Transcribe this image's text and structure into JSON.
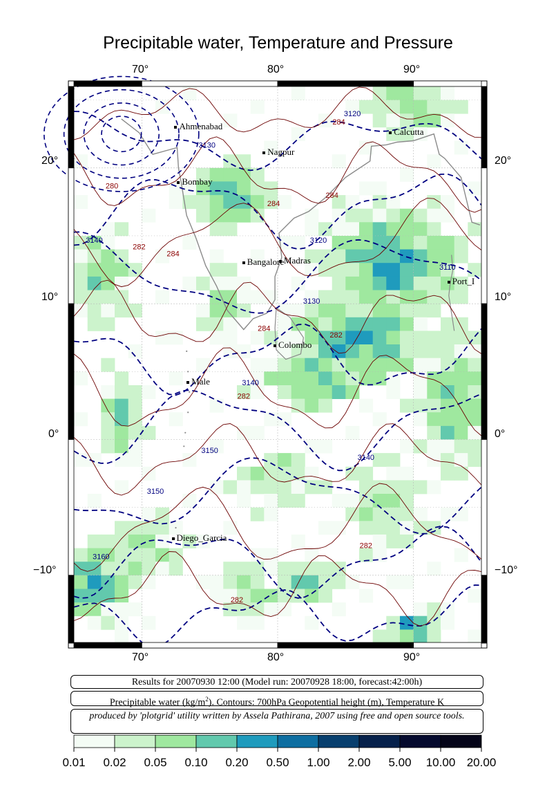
{
  "title": "Precipitable water, Temperature and Pressure",
  "axes": {
    "lon_ticks": [
      "70°",
      "80°",
      "90°"
    ],
    "lat_ticks": [
      "20°",
      "10°",
      "0°",
      "−10°"
    ]
  },
  "cities": [
    {
      "name": "Ahmenabad",
      "lon": 72.6,
      "lat": 23.0
    },
    {
      "name": "Calcutta",
      "lon": 88.4,
      "lat": 22.6
    },
    {
      "name": "Nagpur",
      "lon": 79.1,
      "lat": 21.1
    },
    {
      "name": "Bombay",
      "lon": 72.8,
      "lat": 18.9
    },
    {
      "name": "Bangalore",
      "lon": 77.6,
      "lat": 13.0
    },
    {
      "name": "Madras",
      "lon": 80.3,
      "lat": 13.1
    },
    {
      "name": "Port_I",
      "lon": 92.7,
      "lat": 11.6
    },
    {
      "name": "Colombo",
      "lon": 79.9,
      "lat": 6.9
    },
    {
      "name": "Male",
      "lon": 73.5,
      "lat": 4.2
    },
    {
      "name": "Diego_Garcia",
      "lon": 72.4,
      "lat": -7.3
    }
  ],
  "contour_labels": [
    {
      "text": "3120",
      "lon": 85.5,
      "lat": 23.8,
      "color": "#000080"
    },
    {
      "text": "284",
      "lon": 84.5,
      "lat": 23.2,
      "color": "#8b0000"
    },
    {
      "text": "3130",
      "lon": 74.8,
      "lat": 21.5,
      "color": "#000080"
    },
    {
      "text": "280",
      "lon": 67.8,
      "lat": 18.5,
      "color": "#8b0000"
    },
    {
      "text": "284",
      "lon": 84.0,
      "lat": 17.8,
      "color": "#8b0000"
    },
    {
      "text": "284",
      "lon": 79.7,
      "lat": 17.2,
      "color": "#8b0000"
    },
    {
      "text": "3140",
      "lon": 66.5,
      "lat": 14.5,
      "color": "#000080"
    },
    {
      "text": "282",
      "lon": 69.8,
      "lat": 14.0,
      "color": "#8b0000"
    },
    {
      "text": "3120",
      "lon": 83.0,
      "lat": 14.5,
      "color": "#000080"
    },
    {
      "text": "284",
      "lon": 72.3,
      "lat": 13.5,
      "color": "#8b0000"
    },
    {
      "text": "3110",
      "lon": 92.5,
      "lat": 12.5,
      "color": "#000080"
    },
    {
      "text": "3130",
      "lon": 82.5,
      "lat": 10.0,
      "color": "#000080"
    },
    {
      "text": "282",
      "lon": 84.3,
      "lat": 7.5,
      "color": "#8b0000"
    },
    {
      "text": "284",
      "lon": 79.0,
      "lat": 8.0,
      "color": "#8b0000"
    },
    {
      "text": "3140",
      "lon": 78.0,
      "lat": 4.0,
      "color": "#000080"
    },
    {
      "text": "282",
      "lon": 77.5,
      "lat": 3.0,
      "color": "#8b0000"
    },
    {
      "text": "3150",
      "lon": 75.0,
      "lat": -1.0,
      "color": "#000080"
    },
    {
      "text": "3140",
      "lon": 86.5,
      "lat": -1.5,
      "color": "#000080"
    },
    {
      "text": "3150",
      "lon": 71.0,
      "lat": -4.0,
      "color": "#000080"
    },
    {
      "text": "282",
      "lon": 86.5,
      "lat": -8.0,
      "color": "#8b0000"
    },
    {
      "text": "3160",
      "lon": 67.0,
      "lat": -8.8,
      "color": "#000080"
    },
    {
      "text": "282",
      "lon": 77.0,
      "lat": -12.0,
      "color": "#8b0000"
    }
  ],
  "info": {
    "results": "Results for 20070930 12:00 (Model run: 20070928 18:00, forecast:42:00h)",
    "legend_prefix": "Precipitable water (kg/m",
    "legend_sup": "2",
    "legend_suffix": ").  Contours: 700hPa Geopotential height (m), Temperature K",
    "credit": "produced by 'plotgrid' utility written by Assela Pathirana, 2007 using free and open source tools."
  },
  "colorbar": {
    "labels": [
      "0.01",
      "0.02",
      "0.05",
      "0.10",
      "0.20",
      "0.50",
      "1.00",
      "2.00",
      "5.00",
      "10.00",
      "20.00"
    ],
    "colors": [
      "#f4fcf5",
      "#ccf3cc",
      "#9fe89f",
      "#62c9ad",
      "#1f9bbd",
      "#0e6ea1",
      "#083f6e",
      "#06214b",
      "#050a2e",
      "#050519",
      "#000008"
    ]
  }
}
